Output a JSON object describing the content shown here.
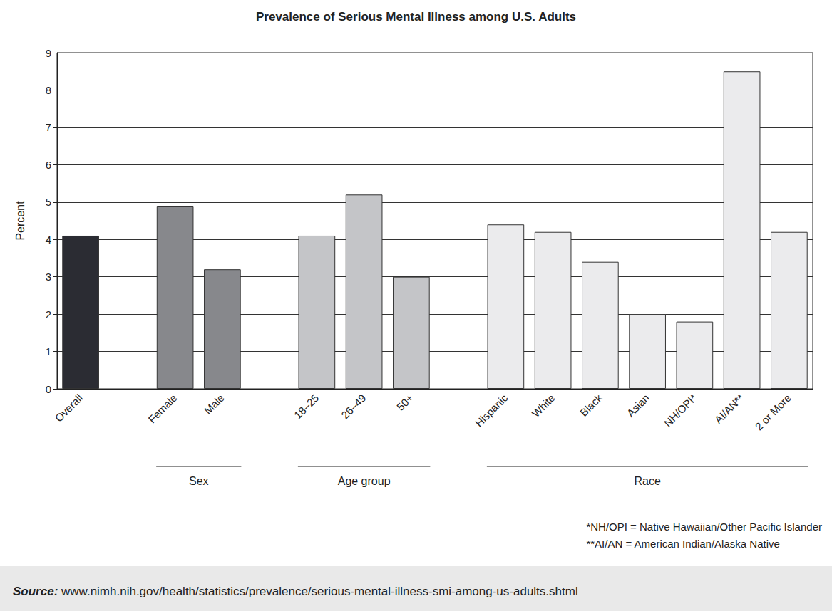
{
  "chart_data": {
    "type": "bar",
    "title": "Prevalence of Serious Mental Illness among U.S. Adults",
    "y_label": "Percent",
    "categories": [
      "Overall",
      null,
      "Female",
      "Male",
      null,
      "18–25",
      "26–49",
      "50+",
      null,
      "Hispanic",
      "White",
      "Black",
      "Asian",
      "NH/OPI*",
      "AI/AN**",
      "2 or More"
    ],
    "values": [
      4.1,
      null,
      4.9,
      3.2,
      null,
      4.1,
      5.2,
      3.0,
      null,
      4.4,
      4.2,
      3.4,
      2.0,
      1.8,
      8.5,
      4.2
    ],
    "colors": [
      "#2b2c33",
      null,
      "#87888c",
      "#87888c",
      null,
      "#c4c5c8",
      "#c4c5c8",
      "#c4c5c8",
      null,
      "#ebebed",
      "#ebebed",
      "#ebebed",
      "#ebebed",
      "#ebebed",
      "#ebebed",
      "#ebebed"
    ],
    "ylim": [
      0,
      9
    ],
    "yticks": [
      0,
      1,
      2,
      3,
      4,
      5,
      6,
      7,
      8,
      9
    ],
    "grid": true,
    "groups": [
      {
        "label": "Sex",
        "categories": [
          "Female",
          "Male"
        ]
      },
      {
        "label": "Age group",
        "categories": [
          "18–25",
          "26–49",
          "50+"
        ]
      },
      {
        "label": "Race",
        "categories": [
          "Hispanic",
          "White",
          "Black",
          "Asian",
          "NH/OPI*",
          "AI/AN**",
          "2 or More"
        ]
      }
    ],
    "footnotes": [
      "*NH/OPI = Native Hawaiian/Other Pacific Islander",
      "**AI/AN = American Indian/Alaska Native"
    ],
    "source": {
      "label": "Source:",
      "text": "www.nimh.nih.gov/health/statistics/prevalence/serious-mental-illness-smi-among-us-adults.shtml"
    }
  }
}
